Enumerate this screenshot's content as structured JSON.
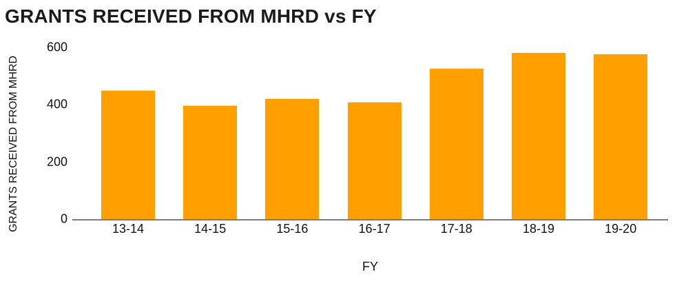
{
  "title": "GRANTS RECEIVED FROM MHRD vs FY",
  "colors": {
    "bar": "#FFA000",
    "axis_line": "#7b7b7b",
    "text": "#1b1b1b",
    "background": "#ffffff"
  },
  "chart_data": {
    "type": "bar",
    "title": "GRANTS RECEIVED FROM MHRD vs FY",
    "xlabel": "FY",
    "ylabel": "GRANTS RECEIVED FROM MHRD",
    "categories": [
      "13-14",
      "14-15",
      "15-16",
      "16-17",
      "17-18",
      "18-19",
      "19-20"
    ],
    "values": [
      450,
      395,
      420,
      407,
      525,
      580,
      575
    ],
    "ylim": [
      0,
      600
    ],
    "yticks": [
      0,
      200,
      400,
      600
    ],
    "grid": false,
    "legend": "none",
    "bar_color": "#FFA000"
  }
}
